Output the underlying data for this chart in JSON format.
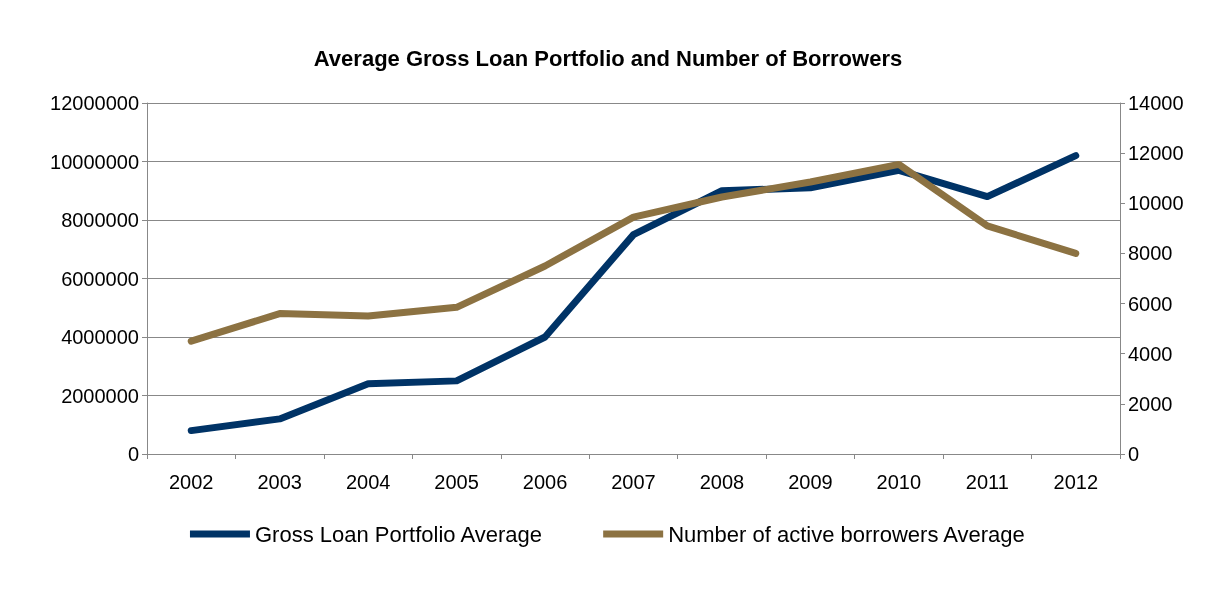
{
  "chart_data": {
    "type": "line",
    "title": "Average Gross Loan Portfolio and Number of Borrowers",
    "categories": [
      "2002",
      "2003",
      "2004",
      "2005",
      "2006",
      "2007",
      "2008",
      "2009",
      "2010",
      "2011",
      "2012"
    ],
    "series": [
      {
        "name": "Gross Loan Portfolio Average",
        "color": "#003366",
        "values": [
          800000,
          1200000,
          2400000,
          2500000,
          4000000,
          7500000,
          9000000,
          9100000,
          9700000,
          8800000,
          10200000
        ]
      },
      {
        "name": "Number of active borrowers Average",
        "color": "#8c7242",
        "axis": "y2",
        "values": [
          4500,
          5600,
          5500,
          5850,
          7500,
          9450,
          10250,
          10850,
          11550,
          9100,
          8000
        ]
      }
    ],
    "ylim": [
      0,
      12000000
    ],
    "yticks": [
      0,
      2000000,
      4000000,
      6000000,
      8000000,
      10000000,
      12000000
    ],
    "y2lim": [
      0,
      14000
    ],
    "y2ticks": [
      0,
      2000,
      4000,
      6000,
      8000,
      10000,
      12000,
      14000
    ],
    "grid": "y",
    "legend": "bottom",
    "marker": "none",
    "line_style": "solid"
  }
}
